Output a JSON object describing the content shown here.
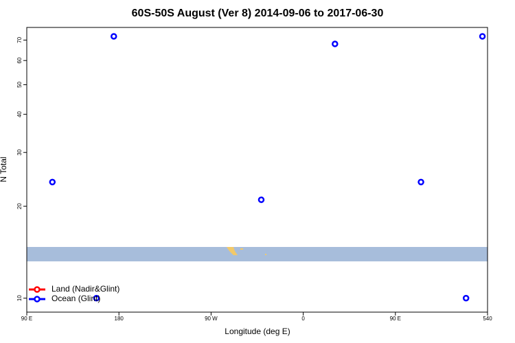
{
  "chart_data": {
    "type": "scatter",
    "title": "60S-50S August (Ver 8)   2014-09-06 to 2017-06-30",
    "x_label": "Longitude (deg E)",
    "y_label": "N Total",
    "series": [
      {
        "name": "Land (Nadir&Glint)",
        "color": "#ff0000",
        "x": [],
        "values": []
      },
      {
        "name": "Ocean (Glint)",
        "color": "#0000ff",
        "x": [
          115,
          158,
          175,
          319,
          391,
          475,
          519,
          535
        ],
        "values": [
          24,
          10,
          72,
          21,
          68,
          24,
          10,
          72
        ]
      }
    ],
    "xlim": [
      90,
      540
    ],
    "xticks": [
      {
        "value": 90,
        "label": "90 E"
      },
      180,
      {
        "value": 270,
        "label": "90 W"
      },
      {
        "value": 360,
        "label": "0"
      },
      {
        "value": 450,
        "label": "90 E"
      },
      540
    ],
    "ylim": [
      9,
      77
    ],
    "yticks": [
      10,
      20,
      30,
      40,
      50,
      60,
      70
    ],
    "log_y": true,
    "legend": "lower left"
  }
}
